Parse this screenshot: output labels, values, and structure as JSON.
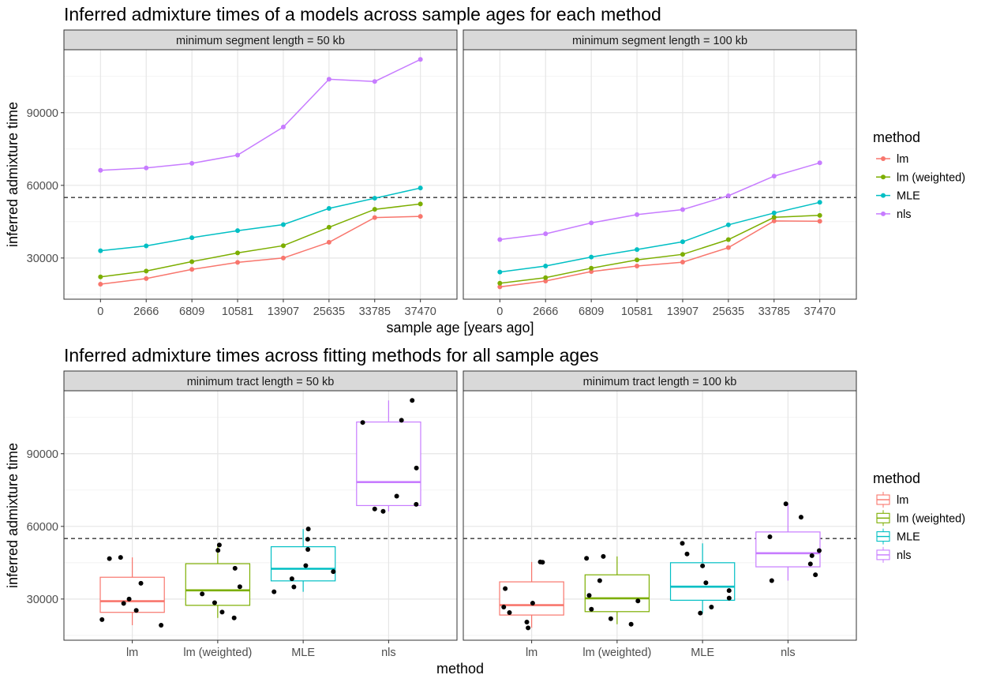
{
  "chart_data": [
    {
      "type": "line",
      "title": "Inferred admixture times of a models across sample ages for each method",
      "xlabel": "sample age [years ago]",
      "ylabel": "inferred admixture time",
      "categories": [
        "0",
        "2666",
        "6809",
        "10581",
        "13907",
        "25635",
        "33785",
        "37470"
      ],
      "yticks": [
        30000,
        60000,
        90000
      ],
      "ylim": [
        13000,
        116000
      ],
      "reference_line": 55000,
      "grid": true,
      "legend": {
        "title": "method",
        "position": "right"
      },
      "colors": {
        "lm": "#F8766D",
        "lm (weighted)": "#7CAE00",
        "MLE": "#00BFC4",
        "nls": "#C77CFF"
      },
      "panels": [
        {
          "strip": "minimum segment length = 50 kb",
          "series": [
            {
              "name": "lm",
              "values": [
                19200,
                21500,
                25300,
                28200,
                30000,
                36500,
                46700,
                47200
              ]
            },
            {
              "name": "lm (weighted)",
              "values": [
                22200,
                24600,
                28500,
                32100,
                35100,
                42700,
                50100,
                52300
              ]
            },
            {
              "name": "MLE",
              "values": [
                33000,
                35000,
                38400,
                41300,
                43800,
                50500,
                54700,
                58900
              ]
            },
            {
              "name": "nls",
              "values": [
                66200,
                67200,
                69100,
                72500,
                84100,
                103800,
                102900,
                112000
              ]
            }
          ]
        },
        {
          "strip": "minimum segment length = 100 kb",
          "series": [
            {
              "name": "lm",
              "values": [
                18100,
                20500,
                24400,
                26700,
                28300,
                34300,
                45300,
                45200
              ]
            },
            {
              "name": "lm (weighted)",
              "values": [
                19600,
                21900,
                25800,
                29200,
                31500,
                37600,
                46800,
                47600
              ]
            },
            {
              "name": "MLE",
              "values": [
                24200,
                26700,
                30400,
                33500,
                36700,
                43700,
                48600,
                53000
              ]
            },
            {
              "name": "nls",
              "values": [
                37600,
                40000,
                44500,
                47900,
                50000,
                55700,
                63800,
                69300
              ]
            }
          ]
        }
      ]
    },
    {
      "type": "box",
      "title": "Inferred admixture times across fitting methods for all sample ages",
      "xlabel": "method",
      "ylabel": "inferred admixture time",
      "categories": [
        "lm",
        "lm (weighted)",
        "MLE",
        "nls"
      ],
      "yticks": [
        30000,
        60000,
        90000
      ],
      "ylim": [
        13000,
        116000
      ],
      "reference_line": 55000,
      "grid": true,
      "legend": {
        "title": "method",
        "position": "right"
      },
      "panels": [
        {
          "strip": "minimum tract length = 50 kb",
          "boxes": [
            {
              "name": "lm",
              "min": 19200,
              "q1": 24500,
              "median": 29100,
              "q3": 39000,
              "max": 47200
            },
            {
              "name": "lm (weighted)",
              "min": 22200,
              "q1": 27400,
              "median": 33600,
              "q3": 44600,
              "max": 52300
            },
            {
              "name": "MLE",
              "min": 33000,
              "q1": 37500,
              "median": 42500,
              "q3": 51600,
              "max": 58900
            },
            {
              "name": "nls",
              "min": 66200,
              "q1": 68600,
              "median": 78300,
              "q3": 103100,
              "max": 112000
            }
          ],
          "points": [
            {
              "method": "lm",
              "values": [
                19200,
                21500,
                25300,
                28200,
                30000,
                36500,
                46700,
                47200
              ]
            },
            {
              "method": "lm (weighted)",
              "values": [
                22200,
                24600,
                28500,
                32100,
                35100,
                42700,
                50100,
                52300
              ]
            },
            {
              "method": "MLE",
              "values": [
                33000,
                35000,
                38400,
                41300,
                43800,
                50500,
                54700,
                58900
              ]
            },
            {
              "method": "nls",
              "values": [
                66200,
                67200,
                69100,
                72500,
                84100,
                103800,
                102900,
                112000
              ]
            }
          ]
        },
        {
          "strip": "minimum tract length = 100 kb",
          "boxes": [
            {
              "name": "lm",
              "min": 18100,
              "q1": 23400,
              "median": 27500,
              "q3": 37100,
              "max": 45300
            },
            {
              "name": "lm (weighted)",
              "min": 19600,
              "q1": 24800,
              "median": 30300,
              "q3": 40000,
              "max": 47600
            },
            {
              "name": "MLE",
              "min": 24200,
              "q1": 29500,
              "median": 35100,
              "q3": 45000,
              "max": 53000
            },
            {
              "name": "nls",
              "min": 37600,
              "q1": 43300,
              "median": 48900,
              "q3": 57700,
              "max": 69300
            }
          ],
          "points": [
            {
              "method": "lm",
              "values": [
                18100,
                20500,
                24400,
                26700,
                28300,
                34300,
                45300,
                45200
              ]
            },
            {
              "method": "lm (weighted)",
              "values": [
                19600,
                21900,
                25800,
                29200,
                31500,
                37600,
                46800,
                47600
              ]
            },
            {
              "method": "MLE",
              "values": [
                24200,
                26700,
                30400,
                33500,
                36700,
                43700,
                48600,
                53000
              ]
            },
            {
              "method": "nls",
              "values": [
                37600,
                40000,
                44500,
                47900,
                50000,
                55700,
                63800,
                69300
              ]
            }
          ]
        }
      ]
    }
  ]
}
